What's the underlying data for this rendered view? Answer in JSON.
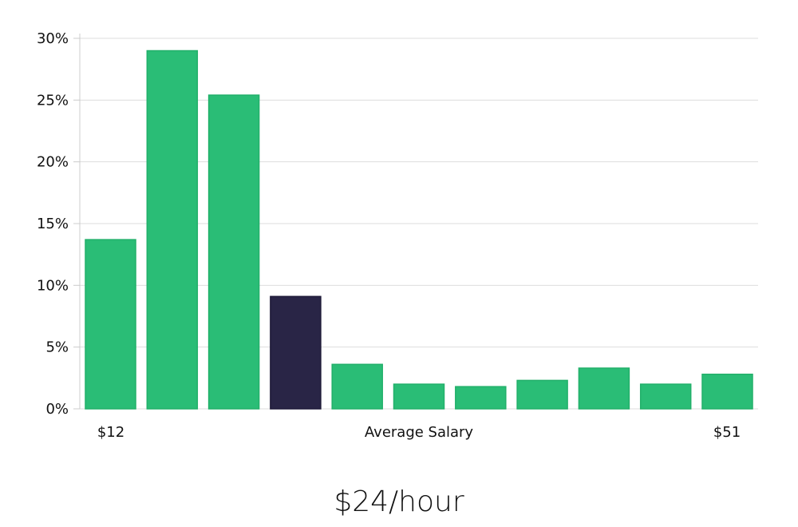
{
  "chart_data": {
    "type": "bar",
    "title": "",
    "xlabel": "Average Salary",
    "ylabel": "",
    "x_start_label": "$12",
    "x_end_label": "$51",
    "bins": 11,
    "values": [
      13.7,
      29.0,
      25.4,
      9.1,
      3.6,
      2.0,
      1.8,
      2.3,
      3.3,
      2.0,
      2.8
    ],
    "highlight_index": 3,
    "ylim": [
      0,
      30
    ],
    "yticks": [
      0,
      5,
      10,
      15,
      20,
      25,
      30
    ],
    "ytick_labels": [
      "0%",
      "5%",
      "10%",
      "15%",
      "20%",
      "25%",
      "30%"
    ],
    "grid": true,
    "colors": {
      "bar": "#2abd76",
      "bar_border": "#22b06a",
      "highlight": "#292546",
      "grid": "#dddddd",
      "axis": "#cccccc"
    }
  },
  "summary": {
    "average_value": "$24/hour"
  }
}
